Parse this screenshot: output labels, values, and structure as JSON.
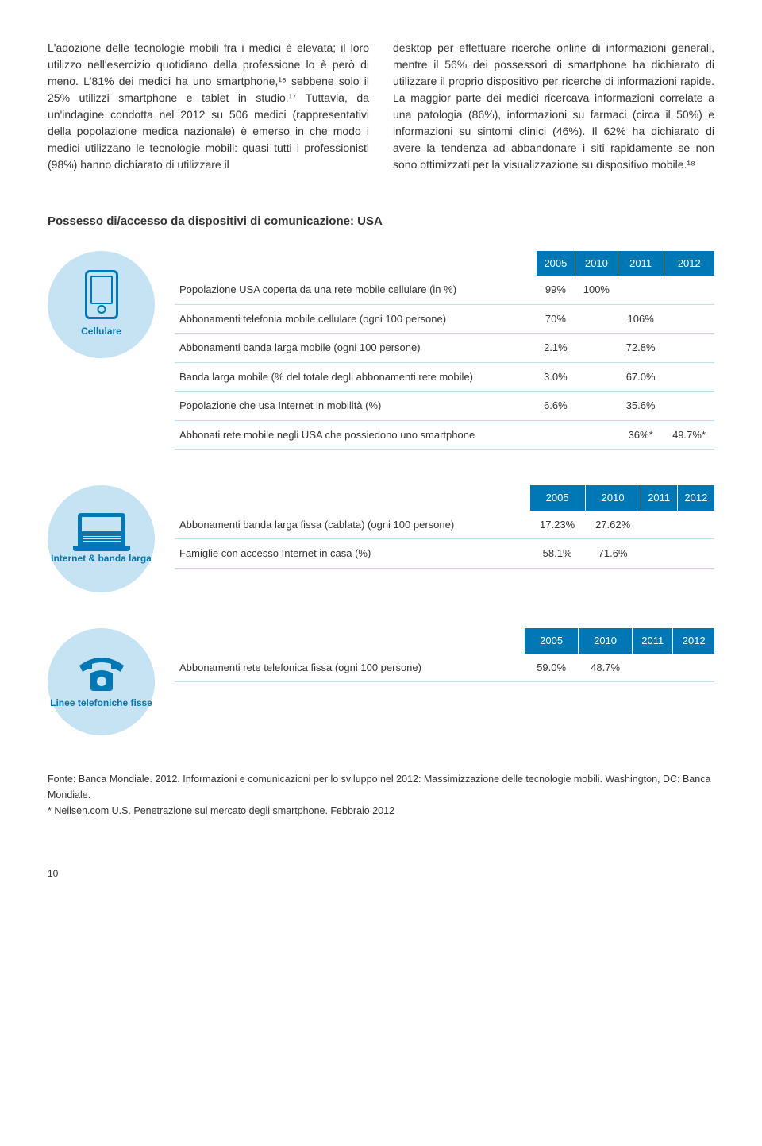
{
  "paragraphs": {
    "left": "L'adozione delle tecnologie mobili fra i medici è elevata; il loro utilizzo nell'esercizio quotidiano della professione lo è però di meno. L'81% dei medici ha uno smartphone,¹⁶ sebbene solo il 25% utilizzi smartphone e tablet in studio.¹⁷ Tuttavia, da un'indagine condotta nel 2012 su 506 medici (rappresentativi della popolazione medica nazionale) è emerso in che modo i medici utilizzano le tecnologie mobili: quasi tutti i professionisti (98%) hanno dichiarato di utilizzare il",
    "right": "desktop per effettuare ricerche online di informazioni generali, mentre il 56% dei possessori di smartphone ha dichiarato di utilizzare il proprio dispositivo per ricerche di informazioni rapide. La maggior parte dei medici ricercava informazioni correlate a una patologia (86%), informazioni su farmaci (circa il 50%) e informazioni su sintomi clinici (46%). Il 62% ha dichiarato di avere la tendenza ad abbandonare i siti rapidamente se non sono ottimizzati per la visualizzazione su dispositivo mobile.¹⁸"
  },
  "section_title": "Possesso di/accesso da dispositivi di comunicazione: USA",
  "years": [
    "2005",
    "2010",
    "2011",
    "2012"
  ],
  "badges": {
    "cellular": "Cellulare",
    "internet": "Internet & banda larga",
    "landline": "Linee telefoniche fisse"
  },
  "tables": {
    "cellular": [
      {
        "label": "Popolazione USA coperta da una rete mobile cellulare (in %)",
        "v": [
          "99%",
          "100%",
          "",
          ""
        ]
      },
      {
        "label": "Abbonamenti telefonia mobile cellulare (ogni 100 persone)",
        "v": [
          "70%",
          "",
          "106%",
          ""
        ]
      },
      {
        "label": "Abbonamenti banda larga mobile (ogni 100 persone)",
        "v": [
          "2.1%",
          "",
          "72.8%",
          ""
        ]
      },
      {
        "label": "Banda larga mobile (% del totale degli abbonamenti rete mobile)",
        "v": [
          "3.0%",
          "",
          "67.0%",
          ""
        ]
      },
      {
        "label": "Popolazione che usa Internet in mobilità (%)",
        "v": [
          "6.6%",
          "",
          "35.6%",
          ""
        ]
      },
      {
        "label": "Abbonati rete mobile negli USA che possiedono uno smartphone",
        "v": [
          "",
          "",
          "36%*",
          "49.7%*"
        ]
      }
    ],
    "internet": [
      {
        "label": "Abbonamenti banda larga fissa (cablata) (ogni 100 persone)",
        "v": [
          "17.23%",
          "27.62%",
          "",
          ""
        ]
      },
      {
        "label": "Famiglie con accesso Internet in casa (%)",
        "v": [
          "58.1%",
          "71.6%",
          "",
          ""
        ]
      }
    ],
    "landline": [
      {
        "label": "Abbonamenti rete telefonica fissa (ogni 100 persone)",
        "v": [
          "59.0%",
          "48.7%",
          "",
          ""
        ]
      }
    ]
  },
  "footnote": {
    "line1": "Fonte: Banca Mondiale. 2012. Informazioni e comunicazioni per lo sviluppo nel 2012: Massimizzazione delle tecnologie mobili. Washington, DC: Banca Mondiale.",
    "line2": "* Neilsen.com U.S. Penetrazione sul mercato degli smartphone. Febbraio 2012"
  },
  "page_number": "10",
  "colors": {
    "brand": "#0078b6",
    "badge_bg": "#c5e3f2",
    "row_border": "#bce0f0",
    "text": "#333333",
    "white": "#ffffff"
  },
  "typography": {
    "body_size": 14,
    "table_size": 13,
    "title_size": 15,
    "badge_label_size": 12,
    "footnote_size": 12.5
  }
}
